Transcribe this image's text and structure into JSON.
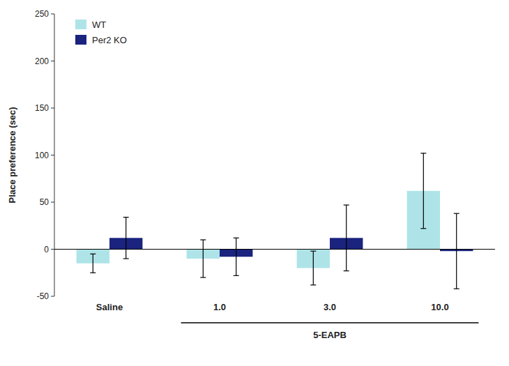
{
  "chart_data": {
    "type": "bar",
    "ylabel": "Place preference (sec)",
    "categories": [
      "Saline",
      "1.0",
      "3.0",
      "10.0"
    ],
    "series": [
      {
        "name": "WT",
        "color": "#aee4e8",
        "values": [
          -15,
          -10,
          -20,
          62
        ],
        "errors": [
          10,
          20,
          18,
          40
        ]
      },
      {
        "name": "Per2 KO",
        "color": "#1a237e",
        "values": [
          12,
          -8,
          12,
          -2
        ],
        "errors": [
          22,
          20,
          35,
          40
        ]
      }
    ],
    "ylim": [
      -50,
      250
    ],
    "yticks": [
      -50,
      0,
      50,
      100,
      150,
      200,
      250
    ],
    "grid": false,
    "legend": "upper left",
    "annotations": [
      {
        "text": "5-EAPB",
        "categories": [
          "1.0",
          "10.0"
        ]
      }
    ]
  }
}
